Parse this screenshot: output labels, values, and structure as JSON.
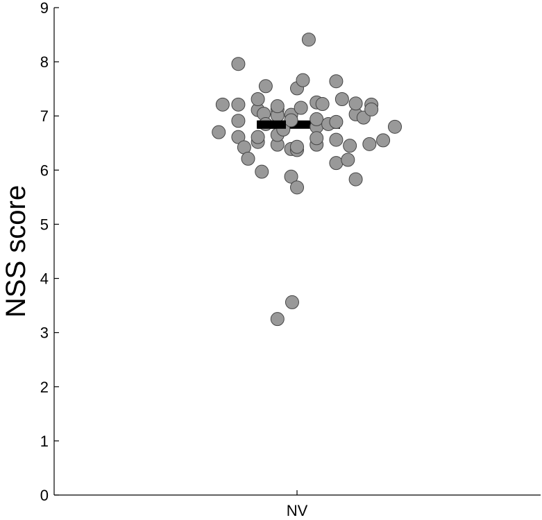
{
  "chart_data": {
    "type": "scatter",
    "title": "",
    "xlabel": "",
    "ylabel": "NSS score",
    "categories": [
      "NV"
    ],
    "ylim": [
      0,
      9
    ],
    "yticks": [
      "0",
      "1",
      "2",
      "3",
      "4",
      "5",
      "6",
      "7",
      "8",
      "9"
    ],
    "grid": false,
    "mean": 6.84,
    "series": [
      {
        "category": "NV",
        "offsets": [
          -0.4,
          -0.38,
          -0.3,
          -0.3,
          -0.3,
          -0.3,
          -0.27,
          -0.25,
          -0.2,
          -0.2,
          -0.2,
          -0.2,
          -0.18,
          -0.17,
          -0.16,
          -0.16,
          -0.1,
          -0.1,
          -0.1,
          -0.1,
          -0.1,
          -0.07,
          -0.03,
          -0.03,
          -0.03,
          -0.03,
          0.0,
          0.0,
          0.0,
          0.0,
          0.02,
          0.03,
          0.06,
          0.1,
          0.1,
          0.1,
          0.1,
          0.1,
          0.13,
          0.16,
          0.2,
          0.2,
          0.2,
          0.2,
          0.23,
          0.26,
          0.27,
          0.3,
          0.3,
          0.3,
          0.34,
          0.37,
          0.38,
          0.38,
          0.44,
          0.5,
          -0.1,
          -0.025
        ],
        "values": [
          6.7,
          7.21,
          6.61,
          7.96,
          7.21,
          6.91,
          6.42,
          6.21,
          6.52,
          6.61,
          7.11,
          7.31,
          5.97,
          7.04,
          6.85,
          7.55,
          6.47,
          7.12,
          7.01,
          6.65,
          7.18,
          6.75,
          5.88,
          6.39,
          7.02,
          6.92,
          7.51,
          5.68,
          6.37,
          6.43,
          7.15,
          7.66,
          8.41,
          6.47,
          6.8,
          6.94,
          7.25,
          6.59,
          7.22,
          6.85,
          6.13,
          7.64,
          6.56,
          6.89,
          7.31,
          6.19,
          6.45,
          5.83,
          7.03,
          7.23,
          6.97,
          6.48,
          7.21,
          7.12,
          6.55,
          6.8,
          3.25,
          3.56
        ]
      }
    ]
  }
}
